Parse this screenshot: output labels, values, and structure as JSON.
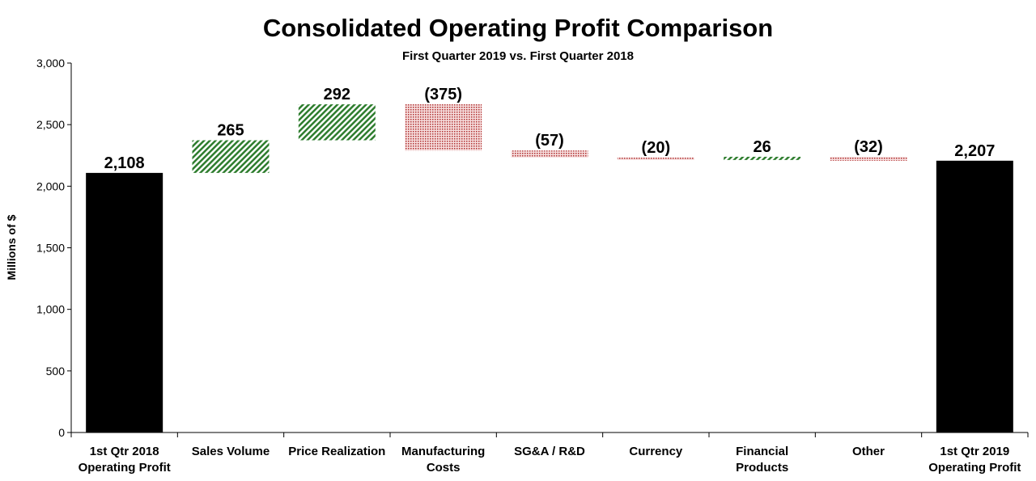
{
  "chart_data": {
    "type": "waterfall",
    "title": "Consolidated Operating Profit Comparison",
    "subtitle": "First Quarter 2019 vs. First Quarter 2018",
    "ylabel": "Millions of $",
    "xlabel": "",
    "ylim": [
      0,
      3000
    ],
    "yticks": [
      0,
      500,
      1000,
      1500,
      2000,
      2500,
      3000
    ],
    "ytick_labels": [
      "0",
      "500",
      "1,000",
      "1,500",
      "2,000",
      "2,500",
      "3,000"
    ],
    "grid": false,
    "legend": "none",
    "categories": [
      [
        "1st Qtr 2018",
        "Operating Profit"
      ],
      [
        "Sales Volume"
      ],
      [
        "Price Realization"
      ],
      [
        "Manufacturing",
        "Costs"
      ],
      [
        "SG&A / R&D"
      ],
      [
        "Currency"
      ],
      [
        "Financial",
        "Products"
      ],
      [
        "Other"
      ],
      [
        "1st Qtr 2019",
        "Operating Profit"
      ]
    ],
    "values": [
      2108,
      265,
      292,
      -375,
      -57,
      -20,
      26,
      -32,
      2207
    ],
    "kinds": [
      "total",
      "delta",
      "delta",
      "delta",
      "delta",
      "delta",
      "delta",
      "delta",
      "total"
    ],
    "data_labels": [
      "2,108",
      "265",
      "292",
      "(375)",
      "(57)",
      "(20)",
      "26",
      "(32)",
      "2,207"
    ],
    "colors": {
      "total": "#000000",
      "increase": "#2e7d2e",
      "decrease": "#b03030"
    }
  }
}
